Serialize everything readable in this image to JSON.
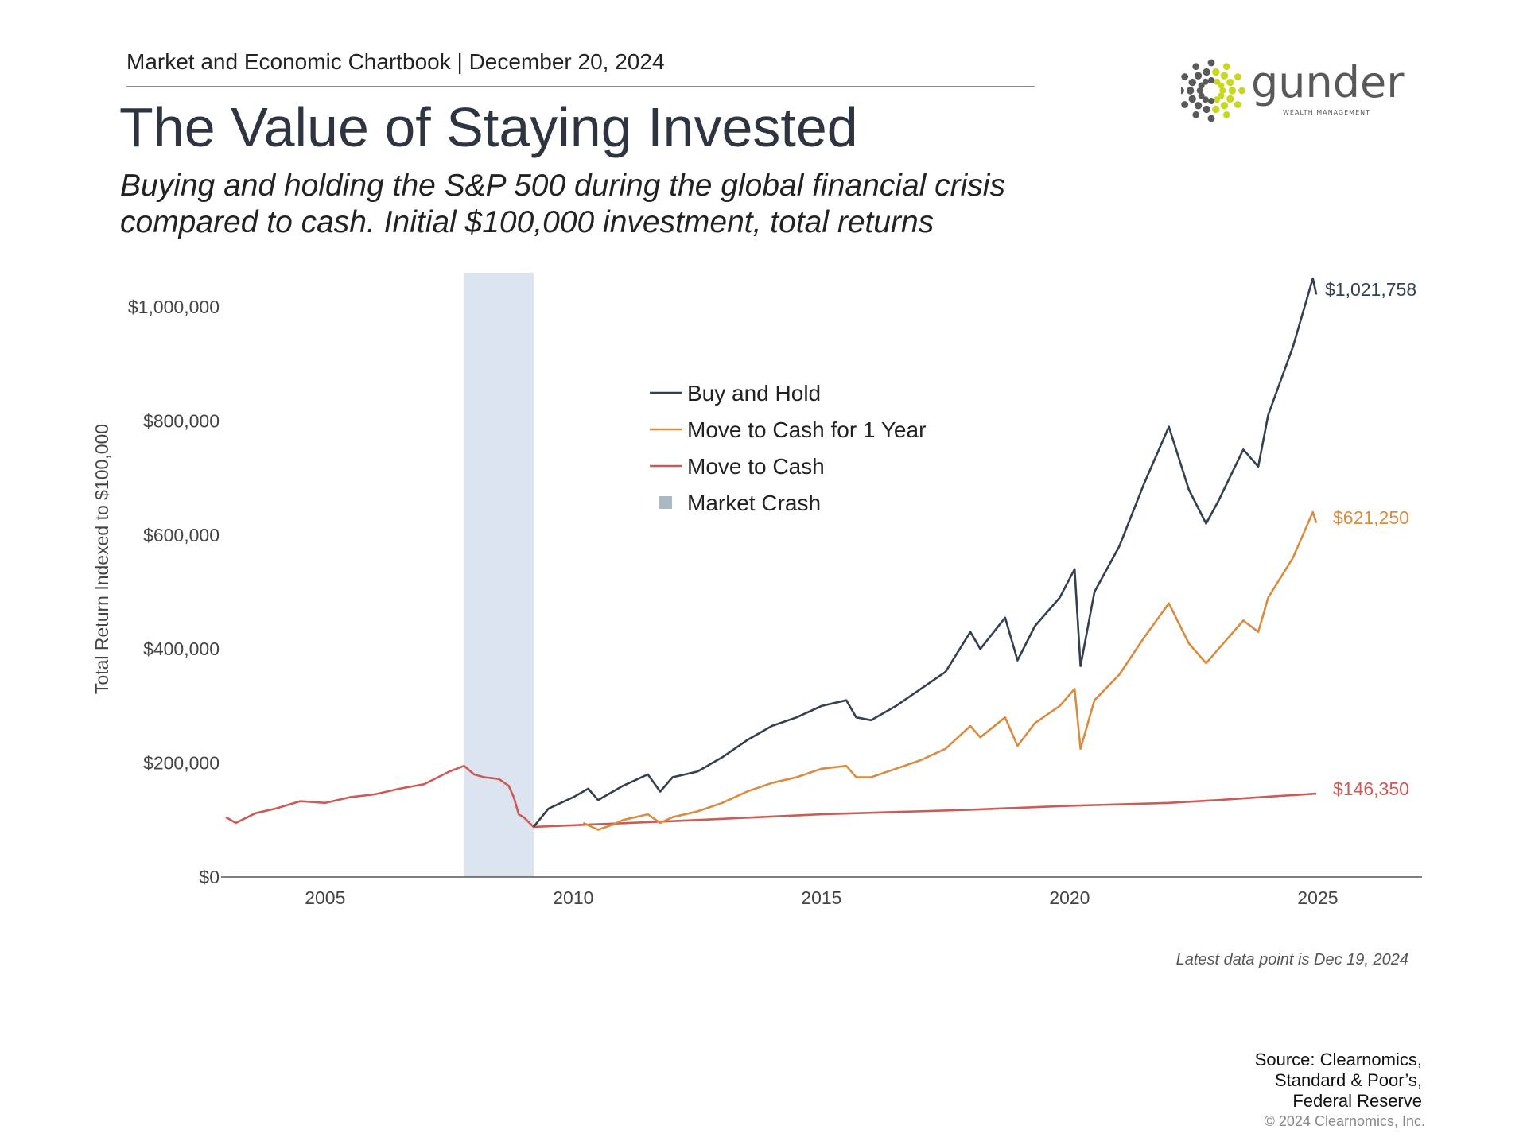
{
  "header": {
    "kicker": "Market and Economic Chartbook | December 20, 2024",
    "title": "The Value of Staying Invested",
    "subtitle_lines": [
      "Buying and holding the S&P 500 during the global financial crisis",
      "compared to cash. Initial $100,000 investment, total returns"
    ]
  },
  "logo": {
    "name": "gunder",
    "tagline": "WEALTH MANAGEMENT",
    "colors": {
      "gray": "#58595b",
      "lime": "#c9d81f"
    }
  },
  "chart_data": {
    "type": "line",
    "ylabel": "Total Return Indexed to $100,000",
    "xlabel": "",
    "xlim": [
      2003.0,
      2027.1
    ],
    "ylim": [
      0,
      1060000
    ],
    "x_ticks": [
      2005,
      2010,
      2015,
      2020,
      2025
    ],
    "x_tick_labels": [
      "2005",
      "2010",
      "2015",
      "2020",
      "2025"
    ],
    "y_ticks": [
      0,
      200000,
      400000,
      600000,
      800000,
      1000000
    ],
    "y_tick_labels": [
      "$0",
      "$200,000",
      "$400,000",
      "$600,000",
      "$800,000",
      "$1,000,000"
    ],
    "grid": false,
    "legend": {
      "placement": "center",
      "entries": [
        "Buy and Hold",
        "Move to Cash for 1 Year",
        "Move to Cash",
        "Market Crash"
      ]
    },
    "shaded_regions": [
      {
        "name": "Market Crash",
        "x": [
          2007.8,
          2009.2
        ],
        "color": "#dbe4ef",
        "legend_color": "#a9b8c5"
      }
    ],
    "series": [
      {
        "name": "Move to Cash",
        "color": "#cc5b55",
        "end_label": "$146,350",
        "x": [
          2003.0,
          2003.2,
          2003.6,
          2004.0,
          2004.5,
          2005.0,
          2005.5,
          2006.0,
          2006.5,
          2007.0,
          2007.5,
          2007.8,
          2008.0,
          2008.2,
          2008.5,
          2008.7,
          2008.8,
          2008.9,
          2009.0,
          2009.2,
          2012,
          2015,
          2018,
          2020,
          2022,
          2023,
          2024,
          2024.97
        ],
        "y": [
          105000,
          95000,
          112000,
          120000,
          133000,
          130000,
          140000,
          145000,
          155000,
          163000,
          185000,
          195000,
          180000,
          175000,
          172000,
          160000,
          140000,
          110000,
          105000,
          88000,
          98000,
          110000,
          118000,
          125000,
          130000,
          135000,
          141000,
          146350
        ]
      },
      {
        "name": "Move to Cash for 1 Year",
        "color": "#d98c3f",
        "end_label": "$621,250",
        "x": [
          2010.2,
          2010.5,
          2010.8,
          2011.0,
          2011.5,
          2011.75,
          2012.0,
          2012.5,
          2013.0,
          2013.5,
          2014.0,
          2014.5,
          2015.0,
          2015.5,
          2015.7,
          2016.0,
          2016.5,
          2017.0,
          2017.5,
          2018.0,
          2018.2,
          2018.7,
          2018.95,
          2019.3,
          2019.8,
          2020.1,
          2020.22,
          2020.5,
          2021.0,
          2021.5,
          2022.0,
          2022.4,
          2022.75,
          2023.0,
          2023.5,
          2023.8,
          2024.0,
          2024.5,
          2024.9,
          2024.97
        ],
        "y": [
          95000,
          83000,
          92000,
          100000,
          110000,
          95000,
          105000,
          115000,
          130000,
          150000,
          165000,
          175000,
          190000,
          195000,
          175000,
          175000,
          190000,
          205000,
          225000,
          265000,
          245000,
          280000,
          230000,
          270000,
          300000,
          330000,
          225000,
          310000,
          355000,
          420000,
          480000,
          410000,
          375000,
          400000,
          450000,
          430000,
          490000,
          560000,
          640000,
          621250
        ]
      },
      {
        "name": "Buy and Hold",
        "color": "#34404f",
        "end_label": "$1,021,758",
        "x": [
          2009.2,
          2009.5,
          2010.0,
          2010.3,
          2010.5,
          2011.0,
          2011.5,
          2011.75,
          2012.0,
          2012.5,
          2013.0,
          2013.5,
          2014.0,
          2014.5,
          2015.0,
          2015.5,
          2015.7,
          2016.0,
          2016.5,
          2017.0,
          2017.5,
          2018.0,
          2018.2,
          2018.7,
          2018.95,
          2019.3,
          2019.8,
          2020.1,
          2020.22,
          2020.5,
          2021.0,
          2021.5,
          2022.0,
          2022.4,
          2022.75,
          2023.0,
          2023.5,
          2023.8,
          2024.0,
          2024.5,
          2024.9,
          2024.97
        ],
        "y": [
          88000,
          120000,
          140000,
          155000,
          135000,
          160000,
          180000,
          150000,
          175000,
          185000,
          210000,
          240000,
          265000,
          280000,
          300000,
          310000,
          280000,
          275000,
          300000,
          330000,
          360000,
          430000,
          400000,
          455000,
          380000,
          440000,
          490000,
          540000,
          370000,
          500000,
          580000,
          690000,
          790000,
          680000,
          620000,
          660000,
          750000,
          720000,
          810000,
          930000,
          1050000,
          1021758
        ]
      }
    ]
  },
  "footer": {
    "note": "Latest data point is Dec 19, 2024",
    "source_lines": [
      "Source: Clearnomics,",
      "Standard & Poor’s,",
      "Federal Reserve"
    ],
    "copyright": "© 2024 Clearnomics, Inc."
  }
}
